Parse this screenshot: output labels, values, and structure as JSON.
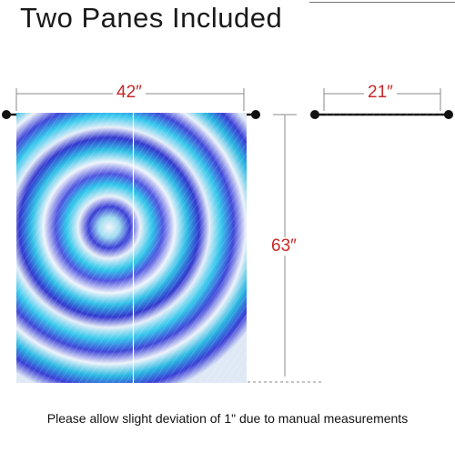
{
  "title": "Two Panes Included",
  "dimensions": {
    "width_pair": "42″",
    "width_single": "21″",
    "height": "63″"
  },
  "footer_note": "Please allow slight deviation of 1\" due to manual measurements",
  "colors": {
    "dimension_text": "#c62828",
    "tie_dye_blue": "#3a3fd6",
    "tie_dye_cyan": "#2ec6ea",
    "tie_dye_light": "#e6eef8",
    "rod": "#1a1a1a"
  },
  "icons": [
    "curtain-rod-end-cap-icon"
  ]
}
